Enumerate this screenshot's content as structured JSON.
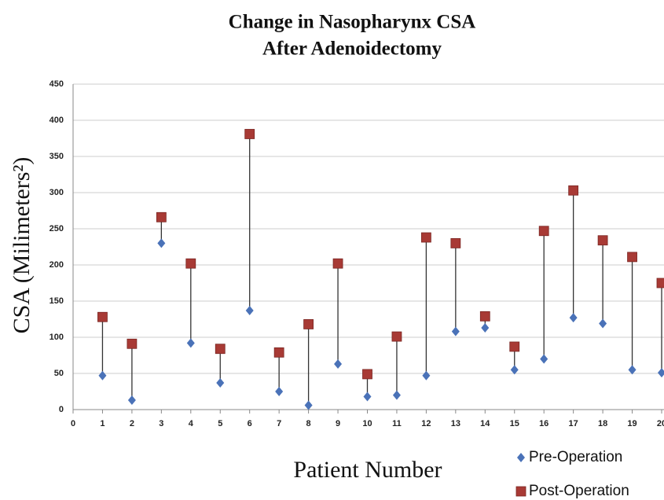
{
  "chart_data": {
    "type": "scatter",
    "title": [
      "Change in Nasopharynx CSA",
      "After Adenoidectomy"
    ],
    "x_label": "Patient Number",
    "y_label": "CSA (Milimeters²)",
    "x": [
      1,
      2,
      3,
      4,
      5,
      6,
      7,
      8,
      9,
      10,
      11,
      12,
      13,
      14,
      15,
      16,
      17,
      18,
      19,
      20
    ],
    "series": [
      {
        "name": "Pre-Operation",
        "color": "#4a72b8",
        "marker": "diamond",
        "values": [
          47,
          13,
          230,
          92,
          37,
          137,
          25,
          6,
          63,
          18,
          20,
          47,
          108,
          113,
          55,
          70,
          127,
          119,
          55,
          51
        ]
      },
      {
        "name": "Post-Operation",
        "color": "#a83a35",
        "marker": "square",
        "values": [
          128,
          91,
          266,
          202,
          84,
          381,
          79,
          118,
          202,
          49,
          101,
          238,
          230,
          129,
          87,
          247,
          303,
          234,
          211,
          175
        ]
      }
    ],
    "xlim": [
      0,
      20
    ],
    "xticks": [
      0,
      1,
      2,
      3,
      4,
      5,
      6,
      7,
      8,
      9,
      10,
      11,
      12,
      13,
      14,
      15,
      16,
      17,
      18,
      19,
      20
    ],
    "ylim": [
      0,
      450
    ],
    "yticks": [
      0,
      50,
      100,
      150,
      200,
      250,
      300,
      350,
      400,
      450
    ],
    "grid": true
  }
}
